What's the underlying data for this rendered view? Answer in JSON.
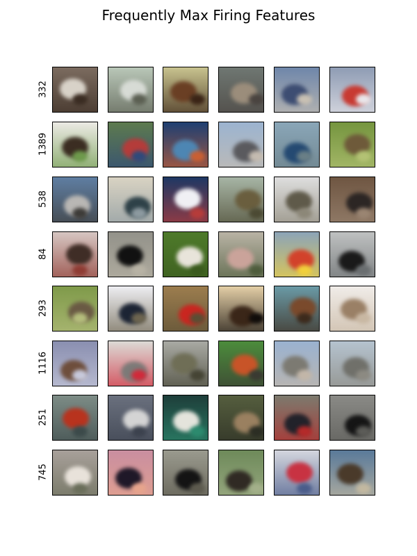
{
  "title": "Frequently Max Firing Features",
  "rows": [
    {
      "label": "332",
      "thumbs": [
        {
          "subject": "horse-rider",
          "bg": "#7b6b5f",
          "fg": "#d8d2c8",
          "accent": "#3a2c22"
        },
        {
          "subject": "airplane",
          "bg": "#b9c7b8",
          "fg": "#d7dbd5",
          "accent": "#5b5f52"
        },
        {
          "subject": "horse",
          "bg": "#c8c38f",
          "fg": "#6a3f24",
          "accent": "#3a2416"
        },
        {
          "subject": "cat",
          "bg": "#6f7772",
          "fg": "#9b8d7b",
          "accent": "#4a4440"
        },
        {
          "subject": "ship",
          "bg": "#6e86aa",
          "fg": "#3d4d72",
          "accent": "#c8c0b3"
        },
        {
          "subject": "fire-truck",
          "bg": "#8e9cb4",
          "fg": "#c83a32",
          "accent": "#e8e6ea"
        }
      ]
    },
    {
      "label": "1389",
      "thumbs": [
        {
          "subject": "horse",
          "bg": "#eceae4",
          "fg": "#3b2d22",
          "accent": "#6e9a4c"
        },
        {
          "subject": "bird",
          "bg": "#5d7a4e",
          "fg": "#b43c3a",
          "accent": "#2f4a7b"
        },
        {
          "subject": "boat",
          "bg": "#1e3f72",
          "fg": "#4d86b3",
          "accent": "#c95f33"
        },
        {
          "subject": "ship",
          "bg": "#9cb4d0",
          "fg": "#5a5a5e",
          "accent": "#c4bbb0"
        },
        {
          "subject": "ship",
          "bg": "#8aa6b8",
          "fg": "#254a72",
          "accent": "#6a7f86"
        },
        {
          "subject": "deer",
          "bg": "#75953f",
          "fg": "#6e5a3a",
          "accent": "#b3c274"
        }
      ]
    },
    {
      "label": "538",
      "thumbs": [
        {
          "subject": "automobile",
          "bg": "#5f7ea2",
          "fg": "#b9b7b4",
          "accent": "#3d3b38"
        },
        {
          "subject": "ship",
          "bg": "#d9d3c3",
          "fg": "#2e4148",
          "accent": "#8d9aa0"
        },
        {
          "subject": "ship",
          "bg": "#1e3864",
          "fg": "#f0f0f4",
          "accent": "#b63c3a"
        },
        {
          "subject": "truck",
          "bg": "#a7b5a5",
          "fg": "#6a5e3e",
          "accent": "#4c4a33"
        },
        {
          "subject": "airplane",
          "bg": "#dedede",
          "fg": "#5f5a4a",
          "accent": "#8c8778"
        },
        {
          "subject": "horse",
          "bg": "#6f5642",
          "fg": "#2c2624",
          "accent": "#9a8572"
        }
      ]
    },
    {
      "label": "84",
      "thumbs": [
        {
          "subject": "horse",
          "bg": "#d6c6c2",
          "fg": "#3f2d26",
          "accent": "#8e3b33"
        },
        {
          "subject": "airplane",
          "bg": "#93928a",
          "fg": "#111111",
          "accent": "#b7b2a4"
        },
        {
          "subject": "bird",
          "bg": "#4e7a2a",
          "fg": "#e8e4da",
          "accent": "#3a5a1e"
        },
        {
          "subject": "horse",
          "bg": "#b9b3a5",
          "fg": "#caa39a",
          "accent": "#4e5c3c"
        },
        {
          "subject": "truck",
          "bg": "#8ca4b8",
          "fg": "#d2422b",
          "accent": "#f0d03c"
        },
        {
          "subject": "boat",
          "bg": "#bfc1c1",
          "fg": "#1a1a1a",
          "accent": "#6a6e70"
        }
      ]
    },
    {
      "label": "293",
      "thumbs": [
        {
          "subject": "bird",
          "bg": "#7f9a4a",
          "fg": "#6a5a44",
          "accent": "#b4bd7c"
        },
        {
          "subject": "airplane",
          "bg": "#eeeef2",
          "fg": "#1c2434",
          "accent": "#6d6550"
        },
        {
          "subject": "automobile",
          "bg": "#9c7d4e",
          "fg": "#c92620",
          "accent": "#5a4e34"
        },
        {
          "subject": "horse",
          "bg": "#e4cfa7",
          "fg": "#3a2618",
          "accent": "#100c0a"
        },
        {
          "subject": "horse",
          "bg": "#6a9aa6",
          "fg": "#7a4a2c",
          "accent": "#3c2a1c"
        },
        {
          "subject": "frog",
          "bg": "#f0ece8",
          "fg": "#9a8066",
          "accent": "#c8b7a2"
        }
      ]
    },
    {
      "label": "1116",
      "thumbs": [
        {
          "subject": "deer",
          "bg": "#8a8fb0",
          "fg": "#6e4e3c",
          "accent": "#c7c9db"
        },
        {
          "subject": "cat",
          "bg": "#dcdad6",
          "fg": "#7c7a78",
          "accent": "#d12a3a"
        },
        {
          "subject": "frog",
          "bg": "#a9aaa4",
          "fg": "#6f6e56",
          "accent": "#454434"
        },
        {
          "subject": "bird",
          "bg": "#4c8c3c",
          "fg": "#c85428",
          "accent": "#3a3a32"
        },
        {
          "subject": "ship",
          "bg": "#9ab2d0",
          "fg": "#7c7a72",
          "accent": "#c2b6a8"
        },
        {
          "subject": "airplane",
          "bg": "#b5c3cf",
          "fg": "#70706a",
          "accent": "#8c8a82"
        }
      ]
    },
    {
      "label": "251",
      "thumbs": [
        {
          "subject": "ship",
          "bg": "#7d8c86",
          "fg": "#b8331e",
          "accent": "#3c4a4a"
        },
        {
          "subject": "boat",
          "bg": "#6a707e",
          "fg": "#d4d4d4",
          "accent": "#3c424e"
        },
        {
          "subject": "boat",
          "bg": "#1e3e3a",
          "fg": "#e4e4dc",
          "accent": "#2c8a6e"
        },
        {
          "subject": "deer",
          "bg": "#555e3e",
          "fg": "#9a8060",
          "accent": "#2c2e24"
        },
        {
          "subject": "horse",
          "bg": "#7c7a6e",
          "fg": "#22222a",
          "accent": "#b42a2a"
        },
        {
          "subject": "dog",
          "bg": "#8a8a86",
          "fg": "#151515",
          "accent": "#5c5c58"
        }
      ]
    },
    {
      "label": "745",
      "thumbs": [
        {
          "subject": "boat",
          "bg": "#a8a09a",
          "fg": "#e8e2da",
          "accent": "#6a6e5a"
        },
        {
          "subject": "deer",
          "bg": "#c98ea0",
          "fg": "#1f1828",
          "accent": "#e6a48c"
        },
        {
          "subject": "airplane",
          "bg": "#9a9a8e",
          "fg": "#141414",
          "accent": "#5c5a4e"
        },
        {
          "subject": "bird",
          "bg": "#6e8a5a",
          "fg": "#302a24",
          "accent": "#a3b08a"
        },
        {
          "subject": "airplane",
          "bg": "#d4d6de",
          "fg": "#c83242",
          "accent": "#4a5c8a"
        },
        {
          "subject": "deer",
          "bg": "#5a7a9a",
          "fg": "#4a3a2a",
          "accent": "#c2b8a0"
        }
      ]
    }
  ]
}
